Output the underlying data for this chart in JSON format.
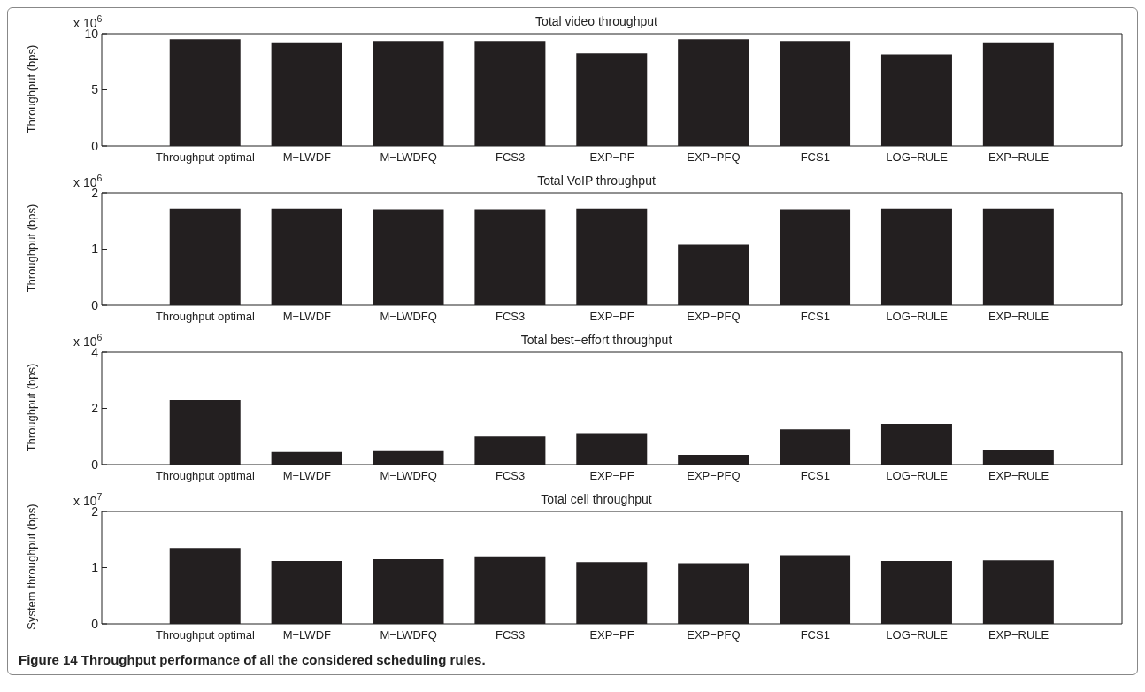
{
  "chart_data": [
    {
      "type": "bar",
      "title": "Total video throughput",
      "ylabel": "Throughput (bps)",
      "annotations": [
        "x 10$^{6}$"
      ],
      "categories": [
        "Throughput optimal",
        "M−LWDF",
        "M−LWDFQ",
        "FCS3",
        "EXP−PF",
        "EXP−PFQ",
        "FCS1",
        "LOG−RULE",
        "EXP−RULE"
      ],
      "values": [
        9.5,
        9.15,
        9.35,
        9.35,
        8.25,
        9.5,
        9.35,
        8.15,
        9.15
      ],
      "color": "#231f20",
      "ylim": [
        0,
        10
      ],
      "yticks": [
        0,
        5,
        10
      ],
      "grid": false,
      "legend": false
    },
    {
      "type": "bar",
      "title": "Total VoIP throughput",
      "ylabel": "Throughput (bps)",
      "annotations": [
        "x 10$^{6}$"
      ],
      "categories": [
        "Throughput optimal",
        "M−LWDF",
        "M−LWDFQ",
        "FCS3",
        "EXP−PF",
        "EXP−PFQ",
        "FCS1",
        "LOG−RULE",
        "EXP−RULE"
      ],
      "values": [
        1.72,
        1.72,
        1.71,
        1.71,
        1.72,
        1.08,
        1.71,
        1.72,
        1.72
      ],
      "color": "#231f20",
      "ylim": [
        0,
        2
      ],
      "yticks": [
        0,
        1,
        2
      ],
      "grid": false,
      "legend": false
    },
    {
      "type": "bar",
      "title": "Total best−effort throughput",
      "ylabel": "Throughput (bps)",
      "annotations": [
        "x 10$^{6}$"
      ],
      "categories": [
        "Throughput optimal",
        "M−LWDF",
        "M−LWDFQ",
        "FCS3",
        "EXP−PF",
        "EXP−PFQ",
        "FCS1",
        "LOG−RULE",
        "EXP−RULE"
      ],
      "values": [
        2.3,
        0.45,
        0.48,
        1.0,
        1.12,
        0.35,
        1.25,
        1.45,
        0.52
      ],
      "color": "#231f20",
      "ylim": [
        0,
        4
      ],
      "yticks": [
        0,
        2,
        4
      ],
      "grid": false,
      "legend": false
    },
    {
      "type": "bar",
      "title": "Total cell throughput",
      "ylabel": "System throughput (bps)",
      "annotations": [
        "x 10$^{7}$",
        "Figure 14 Throughput performance of all the considered scheduling rules."
      ],
      "categories": [
        "Throughput optimal",
        "M−LWDF",
        "M−LWDFQ",
        "FCS3",
        "EXP−PF",
        "EXP−PFQ",
        "FCS1",
        "LOG−RULE",
        "EXP−RULE"
      ],
      "values": [
        1.35,
        1.12,
        1.15,
        1.2,
        1.1,
        1.08,
        1.22,
        1.12,
        1.13
      ],
      "color": "#231f20",
      "ylim": [
        0,
        2
      ],
      "yticks": [
        0,
        1,
        2
      ],
      "grid": false,
      "legend": false
    }
  ]
}
